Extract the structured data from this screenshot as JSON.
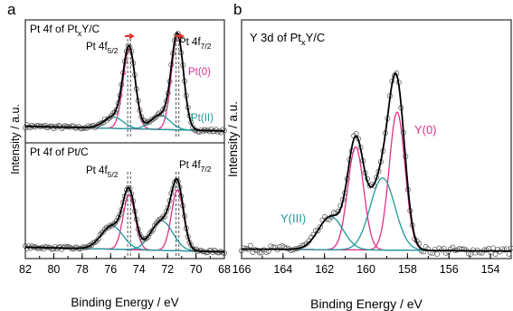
{
  "panels": {
    "a": {
      "label": "a"
    },
    "b": {
      "label": "b"
    }
  },
  "colors": {
    "envelope": "#000000",
    "pt0": "#e0308a",
    "pt2": "#1f9a9a",
    "background": "#1f9a9a",
    "y0": "#e0308a",
    "y3": "#1f9a9a",
    "shift_arrow": "#e8342c",
    "points": "#555555"
  },
  "chart_data": [
    {
      "id": "a-top",
      "type": "line",
      "title": "Pt 4f of PtxY/C",
      "title_main": "Pt 4f of Pt",
      "title_sub": "x",
      "title_tail": "Y/C",
      "xlim": [
        82,
        68
      ],
      "ylabel": "Intensity / a.u.",
      "annotations": {
        "peak_52": {
          "main": "Pt 4f",
          "sub": "5/2"
        },
        "peak_72": {
          "main": "Pt 4f",
          "sub": "7/2"
        },
        "pt0": "Pt(0)",
        "pt2": "Pt(II)"
      },
      "reference_lines_ev": [
        74.8,
        74.6,
        71.4,
        71.2
      ],
      "peak_shift_arrows": [
        [
          75.0,
          74.3
        ],
        [
          71.5,
          70.8
        ]
      ],
      "series": [
        {
          "name": "Pt(0)",
          "components": [
            {
              "center": 74.7,
              "height": 0.85,
              "fwhm": 1.0
            },
            {
              "center": 71.3,
              "height": 1.0,
              "fwhm": 1.0
            }
          ]
        },
        {
          "name": "Pt(II)",
          "components": [
            {
              "center": 75.8,
              "height": 0.12,
              "fwhm": 1.6
            },
            {
              "center": 72.5,
              "height": 0.15,
              "fwhm": 1.6
            }
          ]
        }
      ],
      "baseline": [
        [
          82,
          0.08
        ],
        [
          68,
          0.03
        ]
      ]
    },
    {
      "id": "a-bottom",
      "type": "line",
      "title": "Pt 4f of Pt/C",
      "xlim": [
        82,
        68
      ],
      "xlabel": "Binding Energy / eV",
      "xticks": [
        82,
        80,
        78,
        76,
        74,
        72,
        70,
        68
      ],
      "annotations": {
        "peak_52": {
          "main": "Pt 4f",
          "sub": "5/2"
        },
        "peak_72": {
          "main": "Pt 4f",
          "sub": "7/2"
        }
      },
      "reference_lines_ev": [
        74.8,
        74.6,
        71.4,
        71.2
      ],
      "series": [
        {
          "name": "Pt(0)",
          "components": [
            {
              "center": 74.7,
              "height": 0.7,
              "fwhm": 1.0
            },
            {
              "center": 71.3,
              "height": 0.78,
              "fwhm": 1.0
            }
          ]
        },
        {
          "name": "Pt(II)",
          "components": [
            {
              "center": 75.9,
              "height": 0.3,
              "fwhm": 1.8
            },
            {
              "center": 72.4,
              "height": 0.38,
              "fwhm": 1.8
            }
          ]
        }
      ],
      "baseline": [
        [
          82,
          0.1
        ],
        [
          68,
          0.04
        ]
      ]
    },
    {
      "id": "b",
      "type": "line",
      "title": "Y 3d of PtxY/C",
      "title_main": "Y 3d of Pt",
      "title_sub": "x",
      "title_tail": "Y/C",
      "xlim": [
        166,
        153
      ],
      "xticks": [
        166,
        164,
        162,
        160,
        158,
        156,
        154
      ],
      "xlabel": "Binding Energy / eV",
      "ylabel": "Intensity / a.u.",
      "annotations": {
        "y0": "Y(0)",
        "y3": "Y(III)"
      },
      "series": [
        {
          "name": "Y(0)",
          "components": [
            {
              "center": 160.5,
              "height": 0.5,
              "fwhm": 0.9
            },
            {
              "center": 158.5,
              "height": 0.67,
              "fwhm": 0.9
            }
          ]
        },
        {
          "name": "Y(III)",
          "components": [
            {
              "center": 161.7,
              "height": 0.16,
              "fwhm": 1.4
            },
            {
              "center": 159.2,
              "height": 0.35,
              "fwhm": 1.4
            }
          ]
        }
      ],
      "baseline": [
        [
          166,
          0.02
        ],
        [
          153,
          0.01
        ]
      ]
    }
  ]
}
